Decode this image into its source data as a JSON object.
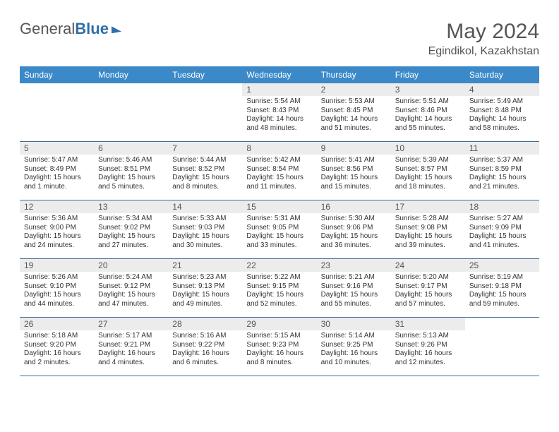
{
  "logo": {
    "part1": "General",
    "part2": "Blue"
  },
  "title": "May 2024",
  "location": "Egindikol, Kazakhstan",
  "headerColors": {
    "bg": "#3b89c9",
    "text": "#ffffff"
  },
  "gridBorder": "#3b6c9a",
  "weekdays": [
    "Sunday",
    "Monday",
    "Tuesday",
    "Wednesday",
    "Thursday",
    "Friday",
    "Saturday"
  ],
  "weeks": [
    [
      {
        "day": "",
        "sunrise": "",
        "sunset": "",
        "daylight": ""
      },
      {
        "day": "",
        "sunrise": "",
        "sunset": "",
        "daylight": ""
      },
      {
        "day": "",
        "sunrise": "",
        "sunset": "",
        "daylight": ""
      },
      {
        "day": "1",
        "sunrise": "Sunrise: 5:54 AM",
        "sunset": "Sunset: 8:43 PM",
        "daylight": "Daylight: 14 hours and 48 minutes."
      },
      {
        "day": "2",
        "sunrise": "Sunrise: 5:53 AM",
        "sunset": "Sunset: 8:45 PM",
        "daylight": "Daylight: 14 hours and 51 minutes."
      },
      {
        "day": "3",
        "sunrise": "Sunrise: 5:51 AM",
        "sunset": "Sunset: 8:46 PM",
        "daylight": "Daylight: 14 hours and 55 minutes."
      },
      {
        "day": "4",
        "sunrise": "Sunrise: 5:49 AM",
        "sunset": "Sunset: 8:48 PM",
        "daylight": "Daylight: 14 hours and 58 minutes."
      }
    ],
    [
      {
        "day": "5",
        "sunrise": "Sunrise: 5:47 AM",
        "sunset": "Sunset: 8:49 PM",
        "daylight": "Daylight: 15 hours and 1 minute."
      },
      {
        "day": "6",
        "sunrise": "Sunrise: 5:46 AM",
        "sunset": "Sunset: 8:51 PM",
        "daylight": "Daylight: 15 hours and 5 minutes."
      },
      {
        "day": "7",
        "sunrise": "Sunrise: 5:44 AM",
        "sunset": "Sunset: 8:52 PM",
        "daylight": "Daylight: 15 hours and 8 minutes."
      },
      {
        "day": "8",
        "sunrise": "Sunrise: 5:42 AM",
        "sunset": "Sunset: 8:54 PM",
        "daylight": "Daylight: 15 hours and 11 minutes."
      },
      {
        "day": "9",
        "sunrise": "Sunrise: 5:41 AM",
        "sunset": "Sunset: 8:56 PM",
        "daylight": "Daylight: 15 hours and 15 minutes."
      },
      {
        "day": "10",
        "sunrise": "Sunrise: 5:39 AM",
        "sunset": "Sunset: 8:57 PM",
        "daylight": "Daylight: 15 hours and 18 minutes."
      },
      {
        "day": "11",
        "sunrise": "Sunrise: 5:37 AM",
        "sunset": "Sunset: 8:59 PM",
        "daylight": "Daylight: 15 hours and 21 minutes."
      }
    ],
    [
      {
        "day": "12",
        "sunrise": "Sunrise: 5:36 AM",
        "sunset": "Sunset: 9:00 PM",
        "daylight": "Daylight: 15 hours and 24 minutes."
      },
      {
        "day": "13",
        "sunrise": "Sunrise: 5:34 AM",
        "sunset": "Sunset: 9:02 PM",
        "daylight": "Daylight: 15 hours and 27 minutes."
      },
      {
        "day": "14",
        "sunrise": "Sunrise: 5:33 AM",
        "sunset": "Sunset: 9:03 PM",
        "daylight": "Daylight: 15 hours and 30 minutes."
      },
      {
        "day": "15",
        "sunrise": "Sunrise: 5:31 AM",
        "sunset": "Sunset: 9:05 PM",
        "daylight": "Daylight: 15 hours and 33 minutes."
      },
      {
        "day": "16",
        "sunrise": "Sunrise: 5:30 AM",
        "sunset": "Sunset: 9:06 PM",
        "daylight": "Daylight: 15 hours and 36 minutes."
      },
      {
        "day": "17",
        "sunrise": "Sunrise: 5:28 AM",
        "sunset": "Sunset: 9:08 PM",
        "daylight": "Daylight: 15 hours and 39 minutes."
      },
      {
        "day": "18",
        "sunrise": "Sunrise: 5:27 AM",
        "sunset": "Sunset: 9:09 PM",
        "daylight": "Daylight: 15 hours and 41 minutes."
      }
    ],
    [
      {
        "day": "19",
        "sunrise": "Sunrise: 5:26 AM",
        "sunset": "Sunset: 9:10 PM",
        "daylight": "Daylight: 15 hours and 44 minutes."
      },
      {
        "day": "20",
        "sunrise": "Sunrise: 5:24 AM",
        "sunset": "Sunset: 9:12 PM",
        "daylight": "Daylight: 15 hours and 47 minutes."
      },
      {
        "day": "21",
        "sunrise": "Sunrise: 5:23 AM",
        "sunset": "Sunset: 9:13 PM",
        "daylight": "Daylight: 15 hours and 49 minutes."
      },
      {
        "day": "22",
        "sunrise": "Sunrise: 5:22 AM",
        "sunset": "Sunset: 9:15 PM",
        "daylight": "Daylight: 15 hours and 52 minutes."
      },
      {
        "day": "23",
        "sunrise": "Sunrise: 5:21 AM",
        "sunset": "Sunset: 9:16 PM",
        "daylight": "Daylight: 15 hours and 55 minutes."
      },
      {
        "day": "24",
        "sunrise": "Sunrise: 5:20 AM",
        "sunset": "Sunset: 9:17 PM",
        "daylight": "Daylight: 15 hours and 57 minutes."
      },
      {
        "day": "25",
        "sunrise": "Sunrise: 5:19 AM",
        "sunset": "Sunset: 9:18 PM",
        "daylight": "Daylight: 15 hours and 59 minutes."
      }
    ],
    [
      {
        "day": "26",
        "sunrise": "Sunrise: 5:18 AM",
        "sunset": "Sunset: 9:20 PM",
        "daylight": "Daylight: 16 hours and 2 minutes."
      },
      {
        "day": "27",
        "sunrise": "Sunrise: 5:17 AM",
        "sunset": "Sunset: 9:21 PM",
        "daylight": "Daylight: 16 hours and 4 minutes."
      },
      {
        "day": "28",
        "sunrise": "Sunrise: 5:16 AM",
        "sunset": "Sunset: 9:22 PM",
        "daylight": "Daylight: 16 hours and 6 minutes."
      },
      {
        "day": "29",
        "sunrise": "Sunrise: 5:15 AM",
        "sunset": "Sunset: 9:23 PM",
        "daylight": "Daylight: 16 hours and 8 minutes."
      },
      {
        "day": "30",
        "sunrise": "Sunrise: 5:14 AM",
        "sunset": "Sunset: 9:25 PM",
        "daylight": "Daylight: 16 hours and 10 minutes."
      },
      {
        "day": "31",
        "sunrise": "Sunrise: 5:13 AM",
        "sunset": "Sunset: 9:26 PM",
        "daylight": "Daylight: 16 hours and 12 minutes."
      },
      {
        "day": "",
        "sunrise": "",
        "sunset": "",
        "daylight": ""
      }
    ]
  ]
}
